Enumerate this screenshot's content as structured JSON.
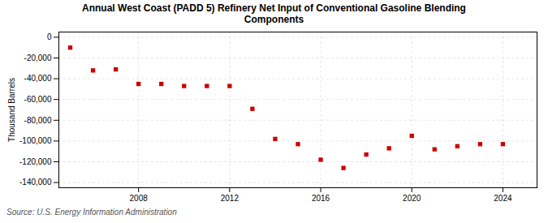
{
  "chart_data": {
    "type": "scatter",
    "title": "Annual West Coast (PADD 5) Refinery Net Input of Conventional Gasoline Blending\nComponents",
    "ylabel": "Thousand Barrels",
    "caption": "Source: U.S. Energy Information Administration",
    "color": "#cc0000",
    "marker": "square",
    "x": [
      2005,
      2006,
      2007,
      2008,
      2009,
      2010,
      2011,
      2012,
      2013,
      2014,
      2015,
      2016,
      2017,
      2018,
      2019,
      2020,
      2021,
      2022,
      2023,
      2024
    ],
    "values": [
      -10000,
      -32000,
      -31000,
      -45000,
      -45000,
      -47000,
      -47000,
      -47000,
      -69000,
      -98000,
      -103000,
      -118000,
      -126000,
      -113000,
      -107000,
      -95000,
      -108000,
      -105000,
      -103000,
      -103000
    ],
    "xlim": [
      2004.5,
      2025.5
    ],
    "ylim": [
      -145000,
      5000
    ],
    "xticks": [
      2008,
      2012,
      2016,
      2020,
      2024
    ],
    "yticks": [
      0,
      {
        "value": -20000,
        "label": "-20,000"
      },
      {
        "value": -40000,
        "label": "-40,000"
      },
      {
        "value": -60000,
        "label": "-60,000"
      },
      {
        "value": -80000,
        "label": "-80,000"
      },
      {
        "value": -100000,
        "label": "-100,000"
      },
      {
        "value": -120000,
        "label": "-120,000"
      },
      {
        "value": -140000,
        "label": "-140,000"
      }
    ],
    "grid": true
  }
}
